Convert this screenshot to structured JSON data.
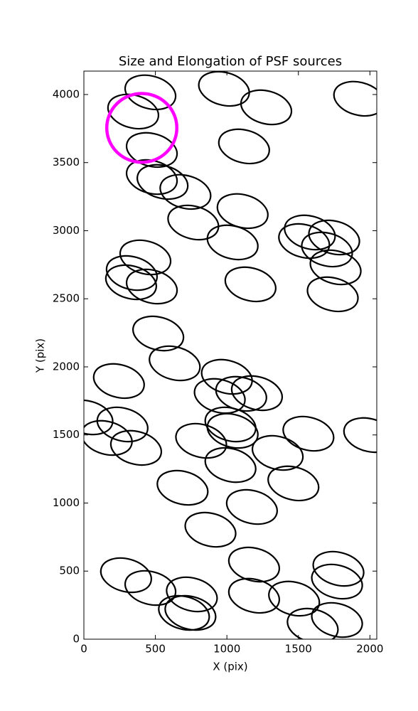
{
  "chart_data": {
    "type": "ellipses",
    "title": "Size and Elongation of PSF sources",
    "xlabel": "X (pix)",
    "ylabel": "Y (pix)",
    "xlim": [
      0,
      2048
    ],
    "ylim": [
      0,
      4172
    ],
    "xticks": [
      0,
      500,
      1000,
      1500,
      2000
    ],
    "yticks": [
      0,
      500,
      1000,
      1500,
      2000,
      2500,
      3000,
      3500,
      4000
    ],
    "series": [
      {
        "color": "#000000",
        "ellipse_width": 360,
        "ellipse_height": 240,
        "ellipse_angle": -15,
        "x": [
          465,
          345,
          980,
          1275,
          1925,
          1120,
          475,
          475,
          550,
          710,
          765,
          1110,
          1040,
          1580,
          1750,
          1540,
          1700,
          1760,
          1740,
          1165,
          430,
          335,
          330,
          475,
          520,
          635,
          245,
          1000,
          1100,
          950,
          1210,
          270,
          25,
          160,
          365,
          820,
          1025,
          1040,
          1025,
          1355,
          1570,
          1995,
          690,
          1465,
          1175,
          885,
          1190,
          295,
          465,
          755,
          700,
          745,
          1190,
          1470,
          1600,
          1770,
          1770,
          1780
        ],
        "values": [
          4016,
          3875,
          4042,
          3906,
          3969,
          3619,
          3593,
          3394,
          3358,
          3285,
          3060,
          3144,
          2914,
          2987,
          2950,
          2924,
          2862,
          2731,
          2533,
          2606,
          2804,
          2689,
          2621,
          2590,
          2245,
          2026,
          1896,
          1927,
          1802,
          1786,
          1807,
          1577,
          1629,
          1478,
          1405,
          1457,
          1577,
          1530,
          1279,
          1368,
          1509,
          1499,
          1112,
          1144,
          971,
          804,
          548,
          470,
          376,
          329,
          193,
          193,
          319,
          298,
          99,
          141,
          423,
          517
        ]
      },
      {
        "color": "#ff00ff",
        "ellipse_width": 490,
        "ellipse_height": 505,
        "ellipse_angle": 0,
        "x": [
          405
        ],
        "values": [
          3755
        ]
      }
    ]
  }
}
